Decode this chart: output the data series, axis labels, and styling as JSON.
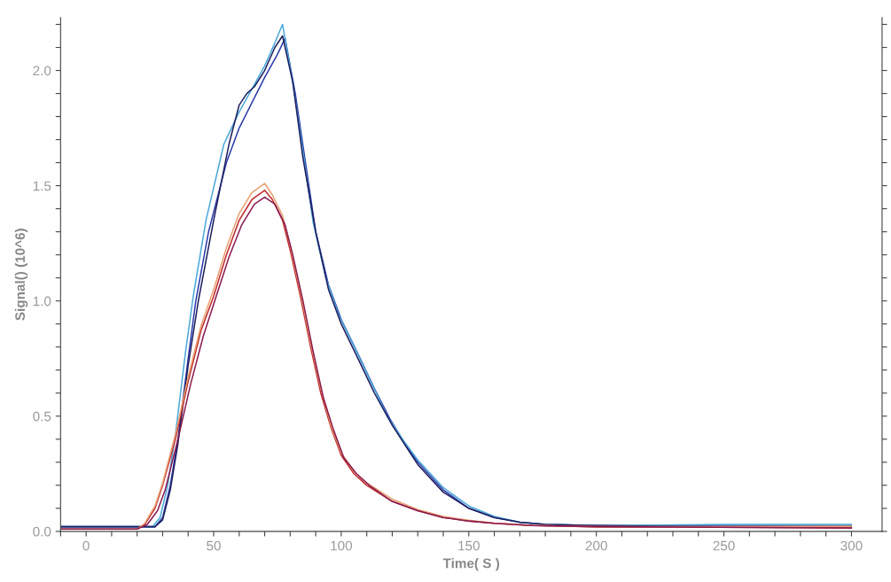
{
  "chart_data": {
    "type": "line",
    "xlabel": "Time( S )",
    "ylabel": "Signal() (10^6)",
    "xlim": [
      -10,
      312
    ],
    "ylim": [
      0,
      2.23
    ],
    "xticks": [
      {
        "value": -10,
        "label": null
      },
      {
        "value": 0,
        "label": "0"
      },
      {
        "value": 10,
        "label": null
      },
      {
        "value": 20,
        "label": null
      },
      {
        "value": 30,
        "label": null
      },
      {
        "value": 40,
        "label": null
      },
      {
        "value": 50,
        "label": "50"
      },
      {
        "value": 60,
        "label": null
      },
      {
        "value": 70,
        "label": null
      },
      {
        "value": 80,
        "label": null
      },
      {
        "value": 90,
        "label": null
      },
      {
        "value": 100,
        "label": "100"
      },
      {
        "value": 110,
        "label": null
      },
      {
        "value": 120,
        "label": null
      },
      {
        "value": 130,
        "label": null
      },
      {
        "value": 140,
        "label": null
      },
      {
        "value": 150,
        "label": "150"
      },
      {
        "value": 160,
        "label": null
      },
      {
        "value": 170,
        "label": null
      },
      {
        "value": 180,
        "label": null
      },
      {
        "value": 190,
        "label": null
      },
      {
        "value": 200,
        "label": "200"
      },
      {
        "value": 210,
        "label": null
      },
      {
        "value": 220,
        "label": null
      },
      {
        "value": 230,
        "label": null
      },
      {
        "value": 240,
        "label": null
      },
      {
        "value": 250,
        "label": "250"
      },
      {
        "value": 260,
        "label": null
      },
      {
        "value": 270,
        "label": null
      },
      {
        "value": 280,
        "label": null
      },
      {
        "value": 290,
        "label": null
      },
      {
        "value": 300,
        "label": "300"
      }
    ],
    "yticks": [
      {
        "value": 0,
        "label": "0.0"
      },
      {
        "value": 0.1,
        "label": null
      },
      {
        "value": 0.2,
        "label": null
      },
      {
        "value": 0.3,
        "label": null
      },
      {
        "value": 0.4,
        "label": null
      },
      {
        "value": 0.5,
        "label": "0.5"
      },
      {
        "value": 0.6,
        "label": null
      },
      {
        "value": 0.7,
        "label": null
      },
      {
        "value": 0.8,
        "label": null
      },
      {
        "value": 0.9,
        "label": null
      },
      {
        "value": 1.0,
        "label": "1.0"
      },
      {
        "value": 1.1,
        "label": null
      },
      {
        "value": 1.2,
        "label": null
      },
      {
        "value": 1.3,
        "label": null
      },
      {
        "value": 1.4,
        "label": null
      },
      {
        "value": 1.5,
        "label": "1.5"
      },
      {
        "value": 1.6,
        "label": null
      },
      {
        "value": 1.7,
        "label": null
      },
      {
        "value": 1.8,
        "label": null
      },
      {
        "value": 1.9,
        "label": null
      },
      {
        "value": 2.0,
        "label": "2.0"
      },
      {
        "value": 2.1,
        "label": null
      },
      {
        "value": 2.2,
        "label": null
      }
    ],
    "grid": false,
    "legend": false,
    "marker": "none",
    "line_style": "solid",
    "series": [
      {
        "color": "#2a3aaa",
        "x": [
          -10,
          20,
          27,
          30,
          33,
          36,
          40,
          43,
          48,
          55,
          60,
          65,
          70,
          75,
          78,
          82,
          86,
          90,
          95,
          100,
          107,
          113,
          119,
          125,
          130,
          140,
          150,
          160,
          170,
          180,
          200,
          250,
          300
        ],
        "values": [
          0.02,
          0.02,
          0.02,
          0.06,
          0.2,
          0.4,
          0.75,
          1.0,
          1.3,
          1.6,
          1.75,
          1.86,
          1.97,
          2.07,
          2.14,
          1.9,
          1.6,
          1.3,
          1.07,
          0.92,
          0.76,
          0.62,
          0.49,
          0.38,
          0.3,
          0.18,
          0.1,
          0.06,
          0.04,
          0.03,
          0.025,
          0.025,
          0.025
        ]
      },
      {
        "color": "#4aa8d8",
        "x": [
          -10,
          20,
          26,
          29,
          32,
          35,
          39,
          42,
          47,
          54,
          60,
          65,
          70,
          74,
          77,
          81,
          85,
          89,
          94,
          99,
          106,
          112,
          118,
          124,
          130,
          140,
          150,
          160,
          170,
          180,
          200,
          250,
          300
        ],
        "values": [
          0.02,
          0.02,
          0.02,
          0.06,
          0.2,
          0.42,
          0.78,
          1.02,
          1.35,
          1.68,
          1.82,
          1.92,
          2.02,
          2.12,
          2.2,
          1.95,
          1.65,
          1.34,
          1.1,
          0.94,
          0.78,
          0.64,
          0.5,
          0.4,
          0.31,
          0.19,
          0.11,
          0.065,
          0.04,
          0.03,
          0.025,
          0.03,
          0.03
        ]
      },
      {
        "color": "#1e1e5e",
        "x": [
          -10,
          20,
          27,
          30,
          33,
          36,
          40,
          44,
          50,
          56,
          60,
          63,
          66,
          70,
          74,
          77,
          81,
          85,
          90,
          95,
          100,
          107,
          113,
          120,
          130,
          140,
          150,
          160,
          170,
          180,
          200,
          250,
          300
        ],
        "values": [
          0.02,
          0.02,
          0.02,
          0.05,
          0.18,
          0.38,
          0.72,
          1.0,
          1.35,
          1.68,
          1.85,
          1.9,
          1.93,
          2.0,
          2.1,
          2.15,
          1.95,
          1.62,
          1.3,
          1.05,
          0.9,
          0.74,
          0.6,
          0.46,
          0.29,
          0.17,
          0.1,
          0.06,
          0.04,
          0.03,
          0.025,
          0.02,
          0.02
        ]
      },
      {
        "color": "#c0282a",
        "x": [
          -10,
          20,
          23,
          27,
          30,
          35,
          40,
          45,
          50,
          55,
          60,
          65,
          70,
          73,
          77,
          80,
          84,
          88,
          92,
          96,
          100,
          105,
          110,
          120,
          130,
          140,
          150,
          160,
          175,
          200,
          300
        ],
        "values": [
          0.01,
          0.01,
          0.03,
          0.1,
          0.2,
          0.4,
          0.65,
          0.87,
          1.02,
          1.2,
          1.35,
          1.44,
          1.48,
          1.44,
          1.35,
          1.22,
          1.02,
          0.8,
          0.6,
          0.45,
          0.33,
          0.25,
          0.2,
          0.13,
          0.09,
          0.06,
          0.045,
          0.035,
          0.025,
          0.02,
          0.015
        ]
      },
      {
        "color": "#e8a070",
        "x": [
          -10,
          20,
          23,
          27,
          30,
          35,
          40,
          45,
          50,
          55,
          60,
          65,
          70,
          73,
          77,
          80,
          84,
          88,
          92,
          96,
          100,
          105,
          110,
          120,
          130,
          140,
          150,
          160,
          175,
          200,
          300
        ],
        "values": [
          0.01,
          0.01,
          0.035,
          0.11,
          0.21,
          0.42,
          0.67,
          0.89,
          1.05,
          1.23,
          1.38,
          1.47,
          1.51,
          1.46,
          1.37,
          1.24,
          1.04,
          0.82,
          0.62,
          0.46,
          0.34,
          0.26,
          0.21,
          0.14,
          0.095,
          0.065,
          0.048,
          0.036,
          0.026,
          0.02,
          0.022
        ]
      },
      {
        "color": "#8a1a50",
        "x": [
          -10,
          20,
          24,
          28,
          31,
          36,
          41,
          46,
          51,
          56,
          61,
          66,
          70,
          74,
          78,
          81,
          85,
          89,
          93,
          97,
          101,
          106,
          111,
          120,
          130,
          140,
          150,
          160,
          175,
          200,
          300
        ],
        "values": [
          0.01,
          0.01,
          0.03,
          0.09,
          0.18,
          0.4,
          0.64,
          0.85,
          1.02,
          1.19,
          1.33,
          1.42,
          1.45,
          1.42,
          1.33,
          1.2,
          1.0,
          0.78,
          0.58,
          0.44,
          0.32,
          0.25,
          0.2,
          0.13,
          0.09,
          0.06,
          0.045,
          0.035,
          0.025,
          0.02,
          0.015
        ]
      }
    ]
  }
}
